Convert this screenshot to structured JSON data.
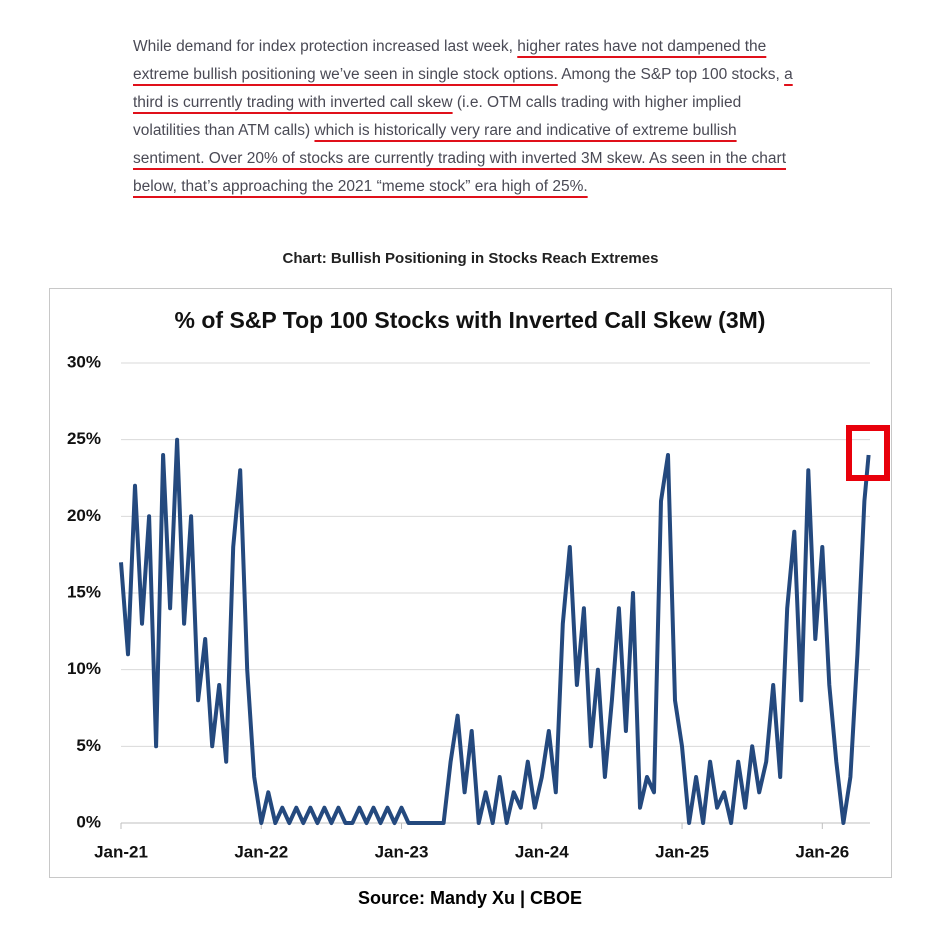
{
  "paragraph": [
    {
      "text": "While demand for index protection increased last week, ",
      "underline": false
    },
    {
      "text": "higher rates have not dampened the extreme bullish positioning we’ve seen in single stock options.",
      "underline": true
    },
    {
      "text": " Among the S&P top 100 stocks, ",
      "underline": false
    },
    {
      "text": "a third is currently trading with inverted call skew",
      "underline": true
    },
    {
      "text": " (i.e. OTM calls trading with higher implied volatilities than ATM calls) ",
      "underline": false
    },
    {
      "text": "which is historically very rare and indicative of extreme bullish sentiment. Over 20% of stocks are currently trading with inverted 3M skew. As seen in the chart below, that’s approaching the 2021 “meme stock” era high of 25%.",
      "underline": true
    }
  ],
  "caption": "Chart: Bullish Positioning in Stocks Reach Extremes",
  "source": "Source: Mandy Xu | CBOE",
  "chart_data": {
    "type": "line",
    "title": "% of S&P Top 100 Stocks with Inverted Call Skew (3M)",
    "x": [
      2021,
      2021.05,
      2021.1,
      2021.15,
      2021.2,
      2021.25,
      2021.3,
      2021.35,
      2021.4,
      2021.45,
      2021.5,
      2021.55,
      2021.6,
      2021.65,
      2021.7,
      2021.75,
      2021.8,
      2021.85,
      2021.9,
      2021.95,
      2022,
      2022.05,
      2022.1,
      2022.15,
      2022.2,
      2022.25,
      2022.3,
      2022.35,
      2022.4,
      2022.45,
      2022.5,
      2022.55,
      2022.6,
      2022.65,
      2022.7,
      2022.75,
      2022.8,
      2022.85,
      2022.9,
      2022.95,
      2023,
      2023.05,
      2023.1,
      2023.15,
      2023.2,
      2023.25,
      2023.3,
      2023.35,
      2023.4,
      2023.45,
      2023.5,
      2023.55,
      2023.6,
      2023.65,
      2023.7,
      2023.75,
      2023.8,
      2023.85,
      2023.9,
      2023.95,
      2024,
      2024.05,
      2024.1,
      2024.15,
      2024.2,
      2024.25,
      2024.3,
      2024.35,
      2024.4,
      2024.45,
      2024.5,
      2024.55,
      2024.6,
      2024.65,
      2024.7,
      2024.75,
      2024.8,
      2024.85,
      2024.9,
      2024.95,
      2025,
      2025.05,
      2025.1,
      2025.15,
      2025.2,
      2025.25,
      2025.3,
      2025.35,
      2025.4,
      2025.45,
      2025.5,
      2025.55,
      2025.6,
      2025.65,
      2025.7,
      2025.75,
      2025.8,
      2025.85,
      2025.9,
      2025.95,
      2026,
      2026.05,
      2026.1,
      2026.15,
      2026.2,
      2026.25,
      2026.3,
      2026.33
    ],
    "series": [
      {
        "name": "% of stocks with inverted call skew",
        "color": "#24497e",
        "values": [
          17,
          11,
          22,
          13,
          20,
          5,
          24,
          14,
          25,
          13,
          20,
          8,
          12,
          5,
          9,
          4,
          18,
          23,
          10,
          3,
          0,
          2,
          0,
          1,
          0,
          1,
          0,
          1,
          0,
          1,
          0,
          1,
          0,
          0,
          1,
          0,
          1,
          0,
          1,
          0,
          1,
          0,
          0,
          0,
          0,
          0,
          0,
          4,
          7,
          2,
          6,
          0,
          2,
          0,
          3,
          0,
          2,
          1,
          4,
          1,
          3,
          6,
          2,
          13,
          18,
          9,
          14,
          5,
          10,
          3,
          8,
          14,
          6,
          15,
          1,
          3,
          2,
          21,
          24,
          8,
          5,
          0,
          3,
          0,
          4,
          1,
          2,
          0,
          4,
          1,
          5,
          2,
          4,
          9,
          3,
          14,
          19,
          8,
          23,
          12,
          18,
          9,
          4,
          0,
          3,
          11,
          21,
          24
        ]
      }
    ],
    "xlim": [
      2021,
      2026.34
    ],
    "xticks": [
      {
        "value": 2021,
        "label": "Jan-21"
      },
      {
        "value": 2022,
        "label": "Jan-22"
      },
      {
        "value": 2023,
        "label": "Jan-23"
      },
      {
        "value": 2024,
        "label": "Jan-24"
      },
      {
        "value": 2025,
        "label": "Jan-25"
      },
      {
        "value": 2026,
        "label": "Jan-26"
      }
    ],
    "ylim": [
      0,
      30
    ],
    "yticks": [
      {
        "value": 0,
        "label": "0%"
      },
      {
        "value": 5,
        "label": "5%"
      },
      {
        "value": 10,
        "label": "10%"
      },
      {
        "value": 15,
        "label": "15%"
      },
      {
        "value": 20,
        "label": "20%"
      },
      {
        "value": 25,
        "label": "25%"
      },
      {
        "value": 30,
        "label": "30%"
      }
    ],
    "grid": true
  }
}
